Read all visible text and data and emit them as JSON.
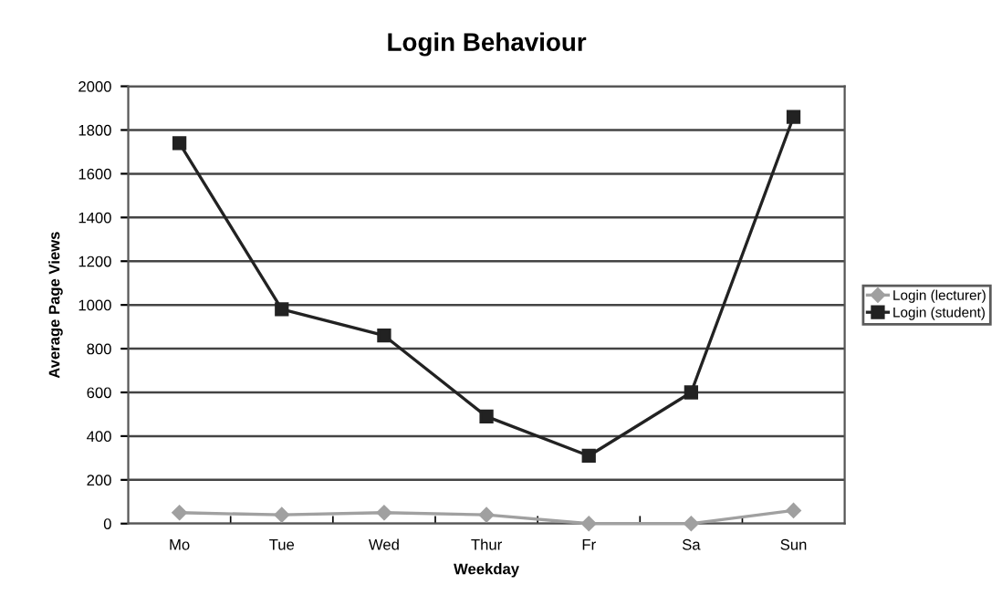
{
  "chart_data": {
    "type": "line",
    "title": "Login Behaviour",
    "xlabel": "Weekday",
    "ylabel": "Average Page Views",
    "categories": [
      "Mo",
      "Tue",
      "Wed",
      "Thur",
      "Fr",
      "Sa",
      "Sun"
    ],
    "series": [
      {
        "name": "Login (lecturer)",
        "color": "#a0a0a0",
        "marker": "diamond",
        "values": [
          50,
          40,
          50,
          40,
          0,
          0,
          60
        ]
      },
      {
        "name": "Login (student)",
        "color": "#222222",
        "marker": "square",
        "values": [
          1740,
          980,
          860,
          490,
          310,
          600,
          1860
        ]
      }
    ],
    "ylim": [
      0,
      2000
    ],
    "yticks": [
      0,
      200,
      400,
      600,
      800,
      1000,
      1200,
      1400,
      1600,
      1800,
      2000
    ],
    "grid": "y",
    "legend": "right"
  }
}
